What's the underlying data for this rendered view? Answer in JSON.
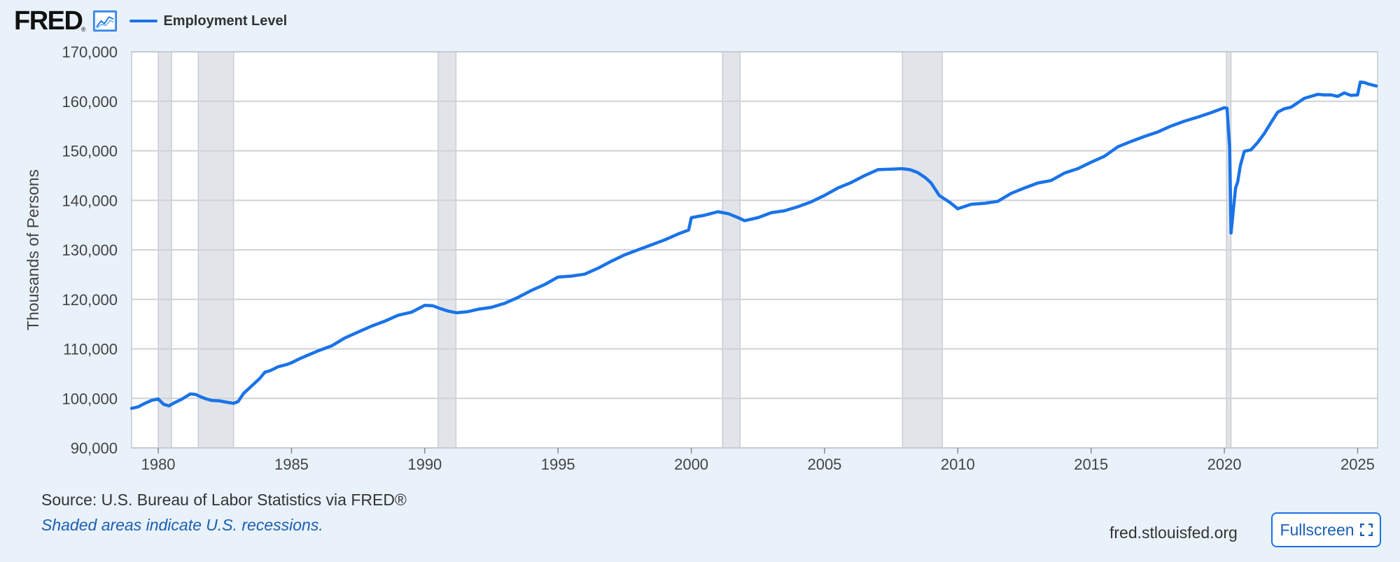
{
  "header": {
    "logo_text": "FRED",
    "logo_mark": "®",
    "logo_icon": "line-chart-icon",
    "legend_label": "Employment Level",
    "legend_color": "#1a73e8"
  },
  "footer": {
    "source": "Source: U.S. Bureau of Labor Statistics via FRED®",
    "note": "Shaded areas indicate U.S. recessions.",
    "url": "fred.stlouisfed.org",
    "fullscreen_label": "Fullscreen",
    "fullscreen_icon": "expand-icon"
  },
  "chart_data": {
    "type": "line",
    "title": "",
    "xlabel": "",
    "ylabel": "Thousands of Persons",
    "xlim": [
      1979.0,
      2025.75
    ],
    "ylim": [
      90000,
      170000
    ],
    "yticks": [
      90000,
      100000,
      110000,
      120000,
      130000,
      140000,
      150000,
      160000,
      170000
    ],
    "ytick_labels": [
      "90,000",
      "100,000",
      "110,000",
      "120,000",
      "130,000",
      "140,000",
      "150,000",
      "160,000",
      "170,000"
    ],
    "xticks": [
      1980,
      1985,
      1990,
      1995,
      2000,
      2005,
      2010,
      2015,
      2020,
      2025
    ],
    "xtick_labels": [
      "1980",
      "1985",
      "1990",
      "1995",
      "2000",
      "2005",
      "2010",
      "2015",
      "2020",
      "2025"
    ],
    "grid": true,
    "series_color": "#1a73e8",
    "recession_color": "#e1e5e9",
    "recessions": [
      [
        1980.0,
        1980.5
      ],
      [
        1981.5,
        1982.83
      ],
      [
        1990.5,
        1991.17
      ],
      [
        2001.17,
        2001.83
      ],
      [
        2007.92,
        2009.42
      ],
      [
        2020.08,
        2020.25
      ]
    ],
    "series": [
      {
        "name": "Employment Level",
        "x": [
          1979.0,
          1979.25,
          1979.5,
          1979.75,
          1980.0,
          1980.2,
          1980.4,
          1980.6,
          1980.9,
          1981.2,
          1981.4,
          1981.6,
          1981.8,
          1982.0,
          1982.3,
          1982.6,
          1982.83,
          1983.0,
          1983.2,
          1983.5,
          1983.8,
          1984.0,
          1984.2,
          1984.5,
          1984.8,
          1985.0,
          1985.3,
          1985.6,
          1986.0,
          1986.5,
          1987.0,
          1987.5,
          1988.0,
          1988.5,
          1989.0,
          1989.5,
          1990.0,
          1990.3,
          1990.6,
          1990.9,
          1991.2,
          1991.6,
          1992.0,
          1992.5,
          1993.0,
          1993.5,
          1994.0,
          1994.5,
          1995.0,
          1995.5,
          1996.0,
          1996.5,
          1997.0,
          1997.5,
          1998.0,
          1998.5,
          1999.0,
          1999.5,
          1999.9,
          2000.0,
          2000.5,
          2001.0,
          2001.4,
          2001.8,
          2002.0,
          2002.5,
          2003.0,
          2003.5,
          2004.0,
          2004.5,
          2005.0,
          2005.5,
          2006.0,
          2006.5,
          2007.0,
          2007.5,
          2007.9,
          2008.2,
          2008.5,
          2008.8,
          2009.0,
          2009.3,
          2009.7,
          2010.0,
          2010.5,
          2011.0,
          2011.5,
          2012.0,
          2012.5,
          2013.0,
          2013.5,
          2014.0,
          2014.5,
          2015.0,
          2015.5,
          2016.0,
          2016.5,
          2017.0,
          2017.5,
          2018.0,
          2018.5,
          2019.0,
          2019.5,
          2020.0,
          2020.1,
          2020.2,
          2020.25,
          2020.33,
          2020.42,
          2020.5,
          2020.6,
          2020.75,
          2021.0,
          2021.25,
          2021.5,
          2021.75,
          2022.0,
          2022.25,
          2022.5,
          2022.75,
          2023.0,
          2023.25,
          2023.5,
          2023.75,
          2024.0,
          2024.25,
          2024.5,
          2024.75,
          2025.0,
          2025.1,
          2025.25,
          2025.4,
          2025.55,
          2025.7
        ],
        "values": [
          98000,
          98300,
          99000,
          99600,
          99900,
          98800,
          98500,
          99100,
          99900,
          100900,
          100800,
          100300,
          99900,
          99600,
          99500,
          99200,
          99000,
          99400,
          101000,
          102500,
          104000,
          105300,
          105600,
          106400,
          106800,
          107200,
          108000,
          108700,
          109600,
          110600,
          112200,
          113400,
          114600,
          115600,
          116800,
          117400,
          118800,
          118700,
          118100,
          117600,
          117300,
          117500,
          118000,
          118400,
          119200,
          120400,
          121800,
          123000,
          124500,
          124700,
          125100,
          126300,
          127700,
          129000,
          130000,
          131000,
          132000,
          133200,
          134000,
          136500,
          137000,
          137700,
          137300,
          136400,
          135900,
          136500,
          137500,
          137900,
          138700,
          139700,
          141000,
          142500,
          143600,
          145000,
          146200,
          146300,
          146400,
          146200,
          145600,
          144500,
          143500,
          141000,
          139600,
          138300,
          139200,
          139400,
          139800,
          141400,
          142500,
          143500,
          144000,
          145500,
          146400,
          147700,
          148900,
          150800,
          151900,
          152900,
          153800,
          155000,
          156000,
          156800,
          157700,
          158700,
          158600,
          150600,
          133400,
          137600,
          142500,
          143700,
          147000,
          149900,
          150200,
          151700,
          153500,
          155700,
          157800,
          158500,
          158800,
          159700,
          160600,
          161000,
          161400,
          161300,
          161300,
          161000,
          161700,
          161200,
          161300,
          163900,
          163800,
          163500,
          163300,
          163100
        ]
      }
    ]
  }
}
